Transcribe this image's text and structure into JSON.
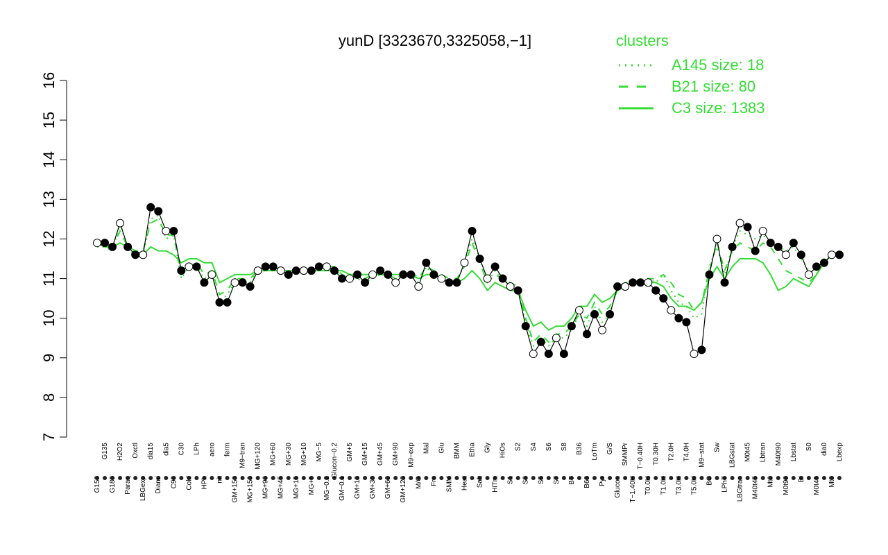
{
  "chart_data": {
    "type": "line",
    "title": "yunD [3323670,3325058,−1]",
    "ylim": [
      7,
      16
    ],
    "yticks": [
      "7",
      "8",
      "9",
      "10",
      "11",
      "12",
      "13",
      "14",
      "15",
      "16"
    ],
    "xlabels": [
      "G150",
      "G135",
      "G180",
      "H2O2",
      "Paraq",
      "Oxctl",
      "LBGexp",
      "dia15",
      "Diami",
      "dia5",
      "C90",
      "C30",
      "Cold",
      "LPh",
      "HPh",
      "aero",
      "nit",
      "ferm",
      "GM+150",
      "M9−tran",
      "MG+150",
      "MG+120",
      "MG+90",
      "MG+60",
      "MG+45",
      "MG+30",
      "MG+15",
      "MG+10",
      "MG+5",
      "MG−5",
      "MG−0.2",
      "Glucon−0.2",
      "GM−0.1",
      "GM+5",
      "GM+10",
      "GM+15",
      "GM+30",
      "GM+45",
      "GM+60",
      "GM+90",
      "GM+120",
      "M9−exp",
      "M/G",
      "Mal",
      "Fru",
      "Glu",
      "SMM",
      "BMM",
      "Heat",
      "Etha",
      "Salt",
      "Gly",
      "HiTm",
      "HiOs",
      "S1",
      "S2",
      "S3",
      "S4",
      "S5",
      "S6",
      "S7",
      "S8",
      "BT",
      "B36",
      "B60",
      "LoTm",
      "Pyr",
      "G/S",
      "Glucon",
      "SMMPr",
      "T−1.40H",
      "T−0.40H",
      "T0.0H",
      "T0.30H",
      "T1.0H",
      "T2.0H",
      "T3.0H",
      "T4.0H",
      "T5.0H",
      "M9−stat",
      "BC",
      "Sw",
      "LPhT",
      "LBGstat",
      "LBGtran",
      "M0t45",
      "M40t45",
      "Lbtran",
      "Mt0",
      "M40t90",
      "M0t90",
      "Lbstat",
      "BI",
      "S0",
      "M0t45",
      "dia0",
      "Mt0",
      "Lbexp"
    ],
    "series": [
      {
        "name": "A145 size: 18",
        "style": "dotted",
        "values": [
          11.8,
          11.8,
          11.7,
          12.4,
          11.7,
          11.6,
          11.6,
          12.5,
          12.6,
          12.0,
          12.1,
          11.0,
          11.3,
          11.3,
          11.0,
          11.1,
          10.4,
          10.6,
          10.9,
          10.9,
          10.9,
          11.2,
          11.2,
          11.3,
          11.2,
          11.1,
          11.2,
          11.2,
          11.2,
          11.3,
          11.3,
          11.2,
          11.1,
          11.0,
          11.0,
          10.9,
          11.0,
          11.1,
          11.1,
          11.0,
          11.1,
          11.1,
          10.9,
          11.3,
          11.1,
          11.0,
          10.9,
          10.9,
          11.4,
          12.0,
          11.5,
          10.9,
          11.2,
          11.0,
          10.8,
          10.7,
          9.9,
          9.3,
          9.5,
          9.3,
          9.5,
          9.5,
          9.7,
          10.1,
          9.8,
          10.3,
          9.9,
          10.1,
          10.8,
          10.9,
          10.9,
          10.9,
          11.0,
          10.9,
          11.1,
          10.7,
          10.4,
          10.3,
          10.0,
          10.1,
          11.3,
          11.8,
          11.1,
          11.8,
          12.2,
          12.1,
          12.0,
          12.1,
          11.9,
          11.8,
          11.7,
          11.8,
          11.5,
          11.2,
          11.1,
          11.5,
          11.6,
          11.7
        ]
      },
      {
        "name": "B21 size: 80",
        "style": "dashed",
        "values": [
          11.9,
          11.9,
          11.8,
          12.2,
          11.8,
          11.7,
          11.7,
          12.4,
          12.5,
          12.1,
          12.1,
          11.1,
          11.3,
          11.4,
          11.1,
          11.2,
          10.6,
          10.7,
          11.0,
          11.0,
          11.0,
          11.2,
          11.2,
          11.3,
          11.2,
          11.2,
          11.2,
          11.2,
          11.2,
          11.3,
          11.3,
          11.3,
          11.1,
          11.0,
          11.1,
          11.0,
          11.1,
          11.2,
          11.1,
          11.0,
          11.2,
          11.2,
          11.0,
          11.3,
          11.2,
          11.1,
          11.0,
          11.0,
          11.3,
          11.9,
          11.4,
          10.9,
          11.1,
          11.0,
          10.9,
          10.8,
          10.0,
          9.4,
          9.6,
          9.4,
          9.6,
          9.6,
          9.8,
          10.1,
          10.0,
          10.4,
          10.1,
          10.3,
          10.7,
          10.9,
          10.9,
          10.9,
          11.0,
          11.0,
          11.1,
          10.9,
          10.6,
          10.5,
          10.2,
          10.4,
          11.2,
          11.9,
          11.2,
          11.7,
          11.9,
          11.8,
          11.7,
          11.9,
          11.8,
          11.5,
          11.2,
          11.1,
          11.0,
          10.9,
          11.1,
          11.4,
          11.6,
          11.7
        ]
      },
      {
        "name": "C3 size: 1383",
        "style": "solid",
        "values": [
          11.9,
          11.8,
          11.8,
          11.9,
          11.8,
          11.7,
          11.6,
          11.8,
          11.7,
          11.7,
          11.6,
          11.4,
          11.5,
          11.5,
          11.4,
          11.4,
          10.9,
          11.0,
          11.1,
          11.1,
          11.1,
          11.2,
          11.2,
          11.2,
          11.2,
          11.2,
          11.2,
          11.2,
          11.2,
          11.2,
          11.2,
          11.2,
          11.2,
          11.1,
          11.1,
          11.1,
          11.1,
          11.1,
          11.1,
          11.1,
          11.1,
          11.1,
          11.0,
          11.1,
          11.1,
          11.0,
          10.9,
          10.9,
          11.0,
          11.2,
          11.0,
          10.7,
          10.9,
          10.8,
          10.7,
          10.7,
          10.2,
          9.8,
          9.9,
          9.7,
          9.8,
          9.8,
          10.0,
          10.3,
          10.3,
          10.6,
          10.4,
          10.5,
          10.7,
          10.8,
          10.9,
          10.9,
          10.9,
          10.9,
          10.8,
          10.5,
          10.3,
          10.3,
          10.2,
          10.4,
          11.0,
          11.3,
          11.0,
          11.3,
          11.5,
          11.5,
          11.5,
          11.4,
          11.1,
          10.7,
          10.8,
          11.0,
          10.9,
          10.8,
          11.1,
          11.4,
          11.6,
          11.7
        ]
      },
      {
        "name": "yunD",
        "style": "points",
        "values": [
          11.9,
          11.9,
          11.8,
          12.4,
          11.8,
          11.6,
          11.6,
          12.8,
          12.7,
          12.2,
          12.2,
          11.2,
          11.3,
          11.3,
          10.9,
          11.1,
          10.4,
          10.4,
          10.9,
          10.9,
          10.8,
          11.2,
          11.3,
          11.3,
          11.2,
          11.1,
          11.2,
          11.2,
          11.2,
          11.3,
          11.3,
          11.2,
          11.0,
          11.0,
          11.1,
          10.9,
          11.1,
          11.2,
          11.1,
          10.9,
          11.1,
          11.1,
          10.8,
          11.4,
          11.1,
          11.0,
          10.9,
          10.9,
          11.4,
          12.2,
          11.5,
          11.0,
          11.3,
          11.0,
          10.8,
          10.7,
          9.8,
          9.1,
          9.4,
          9.1,
          9.5,
          9.1,
          9.8,
          10.2,
          9.6,
          10.1,
          9.7,
          10.1,
          10.8,
          10.8,
          10.9,
          10.9,
          10.9,
          10.7,
          10.5,
          10.2,
          10.0,
          9.9,
          9.1,
          9.2,
          11.1,
          12.0,
          10.9,
          11.8,
          12.4,
          12.3,
          11.7,
          12.2,
          11.9,
          11.8,
          11.6,
          11.9,
          11.6,
          11.1,
          11.3,
          11.4,
          11.6,
          11.6
        ]
      }
    ],
    "legend": {
      "title": "clusters",
      "position": "top-right",
      "entries": [
        "A145 size: 18",
        "B21 size: 80",
        "C3 size: 1383"
      ]
    },
    "colors": {
      "clusters": "#33dd33",
      "main": "#000000"
    }
  }
}
